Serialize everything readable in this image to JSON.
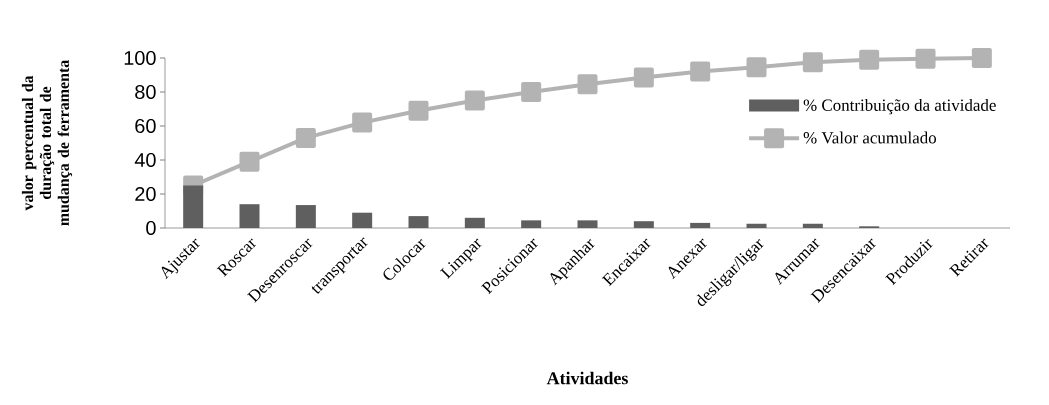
{
  "chart_data": {
    "type": "bar",
    "ylabel": "valor percentual da duração total de mudança de ferramenta",
    "xlabel": "Atividades",
    "categories": [
      "Ajustar",
      "Roscar",
      "Desenroscar",
      "transportar",
      "Colocar",
      "Limpar",
      "Posicionar",
      "Apanhar",
      "Encaixar",
      "Anexar",
      "desligar/ligar",
      "Arrumar",
      "Desencaixar",
      "Produzir",
      "Retirar"
    ],
    "series": [
      {
        "name": "% Contribuição da atividade",
        "color": "#5f5f5f",
        "values": [
          25,
          14,
          13.5,
          9,
          7,
          6,
          4.5,
          4.5,
          4,
          3,
          2.5,
          2.5,
          1,
          0,
          0
        ]
      },
      {
        "name": "% Valor acumulado",
        "type": "line",
        "color": "#b3b3b3",
        "marker": "square",
        "values": [
          25,
          39,
          53,
          62,
          69,
          75,
          80,
          84.5,
          88.5,
          92,
          94.5,
          97.5,
          99,
          99.5,
          100
        ]
      }
    ],
    "ylim": [
      0,
      100
    ],
    "yticks": [
      0,
      20,
      40,
      60,
      80,
      100
    ],
    "legend": "right",
    "grid": false
  }
}
